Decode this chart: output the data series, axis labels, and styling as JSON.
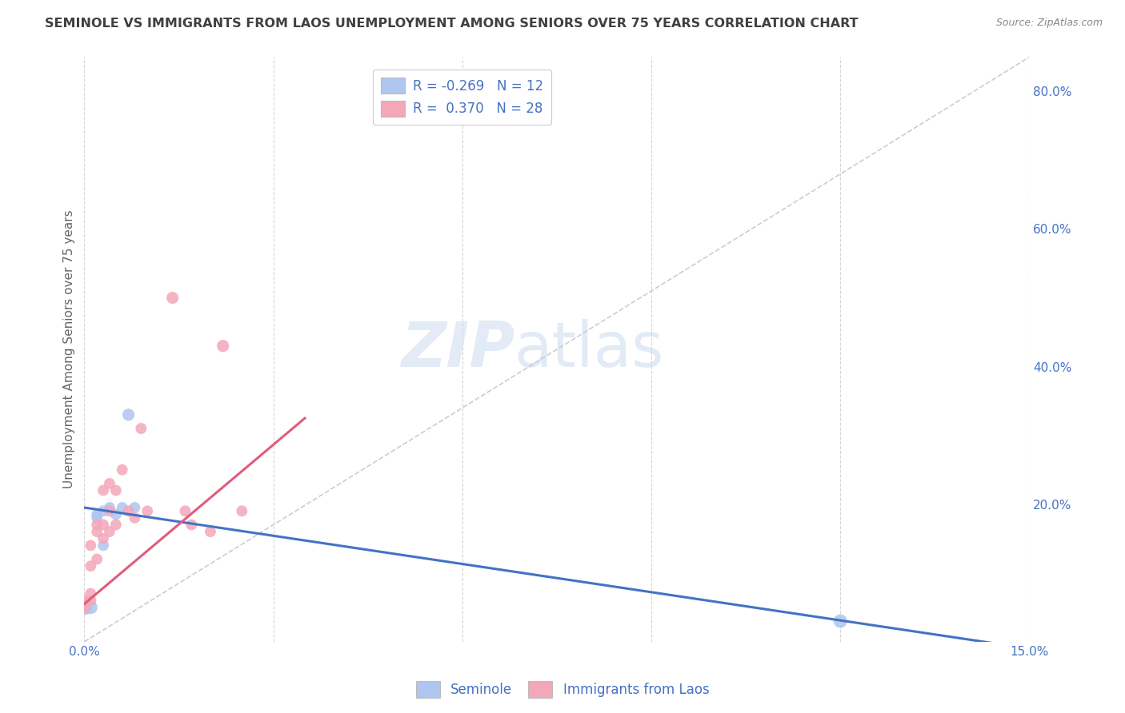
{
  "title": "SEMINOLE VS IMMIGRANTS FROM LAOS UNEMPLOYMENT AMONG SENIORS OVER 75 YEARS CORRELATION CHART",
  "source": "Source: ZipAtlas.com",
  "ylabel": "Unemployment Among Seniors over 75 years",
  "xlabel_seminole": "Seminole",
  "xlabel_laos": "Immigrants from Laos",
  "xlim": [
    0.0,
    0.15
  ],
  "ylim": [
    0.0,
    0.85
  ],
  "bg_color": "#ffffff",
  "grid_color": "#cccccc",
  "title_color": "#404040",
  "axis_label_color": "#4472c4",
  "seminole_color": "#aec6f0",
  "laos_color": "#f4a7b9",
  "seminole_line_color": "#4472c4",
  "laos_line_color": "#e05c7a",
  "diagonal_color": "#c8c8c8",
  "r_seminole": -0.269,
  "n_seminole": 12,
  "r_laos": 0.37,
  "n_laos": 28,
  "seminole_x": [
    0.0,
    0.001,
    0.002,
    0.002,
    0.003,
    0.003,
    0.004,
    0.005,
    0.006,
    0.007,
    0.008,
    0.12
  ],
  "seminole_y": [
    0.05,
    0.05,
    0.18,
    0.185,
    0.14,
    0.19,
    0.195,
    0.185,
    0.195,
    0.33,
    0.195,
    0.03
  ],
  "seminole_size": [
    200,
    150,
    100,
    100,
    100,
    100,
    100,
    100,
    100,
    120,
    100,
    150
  ],
  "laos_x": [
    0.0,
    0.0,
    0.001,
    0.001,
    0.001,
    0.001,
    0.002,
    0.002,
    0.002,
    0.003,
    0.003,
    0.003,
    0.004,
    0.004,
    0.004,
    0.005,
    0.005,
    0.006,
    0.007,
    0.008,
    0.009,
    0.01,
    0.014,
    0.016,
    0.017,
    0.02,
    0.022,
    0.025
  ],
  "laos_y": [
    0.05,
    0.06,
    0.06,
    0.07,
    0.11,
    0.14,
    0.12,
    0.16,
    0.17,
    0.15,
    0.17,
    0.22,
    0.16,
    0.19,
    0.23,
    0.17,
    0.22,
    0.25,
    0.19,
    0.18,
    0.31,
    0.19,
    0.5,
    0.19,
    0.17,
    0.16,
    0.43,
    0.19
  ],
  "laos_size": [
    120,
    100,
    100,
    100,
    100,
    100,
    100,
    100,
    100,
    100,
    100,
    100,
    100,
    100,
    100,
    100,
    100,
    100,
    100,
    100,
    100,
    100,
    120,
    100,
    100,
    100,
    120,
    100
  ],
  "seminole_trend_x": [
    0.0,
    0.15
  ],
  "seminole_trend_y": [
    0.195,
    -0.01
  ],
  "laos_trend_x": [
    0.0,
    0.035
  ],
  "laos_trend_y": [
    0.055,
    0.325
  ],
  "xtick_positions": [
    0.0,
    0.03,
    0.06,
    0.09,
    0.12,
    0.15
  ],
  "xtick_labels": [
    "0.0%",
    "",
    "",
    "",
    "",
    "15.0%"
  ],
  "right_ytick_positions": [
    0.0,
    0.2,
    0.4,
    0.6,
    0.8
  ],
  "right_ytick_labels": [
    "",
    "20.0%",
    "40.0%",
    "60.0%",
    "80.0%"
  ]
}
